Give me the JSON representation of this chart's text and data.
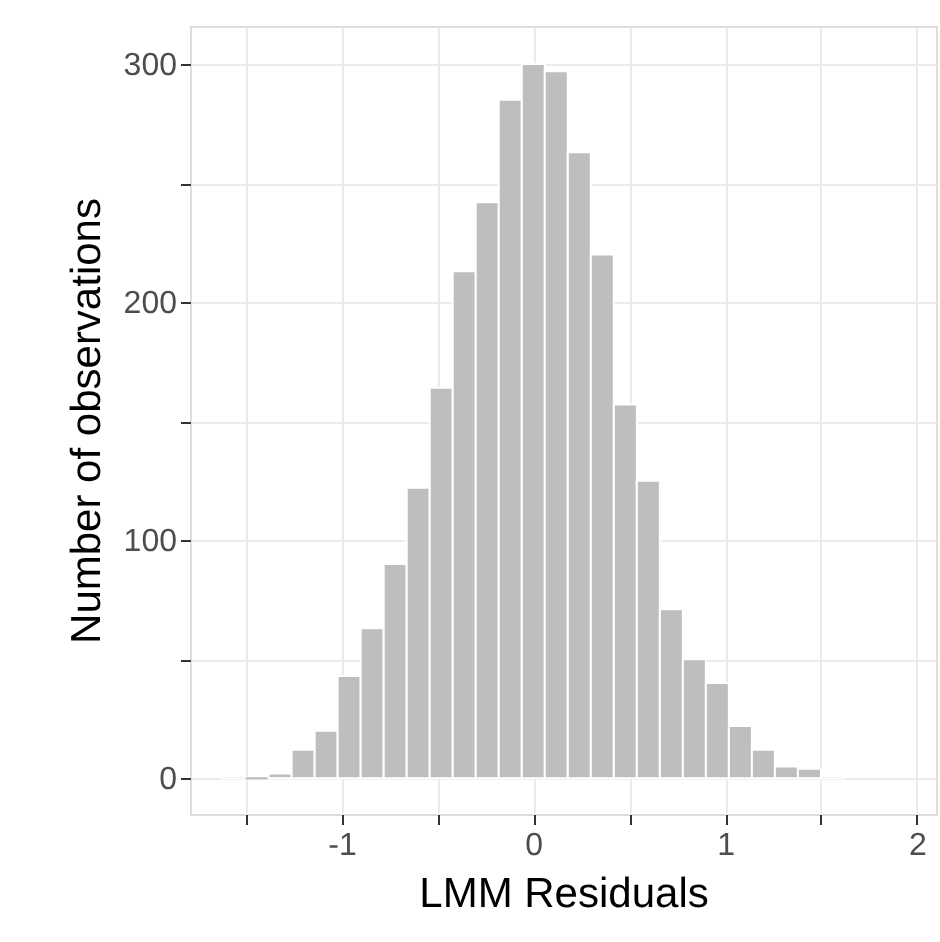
{
  "chart_data": {
    "type": "histogram",
    "xlabel": "LMM Residuals",
    "ylabel": "Number of observations",
    "bins": [
      -1.62,
      -1.5,
      -1.38,
      -1.26,
      -1.14,
      -1.02,
      -0.9,
      -0.78,
      -0.66,
      -0.54,
      -0.42,
      -0.3,
      -0.18,
      -0.06,
      0.06,
      0.18,
      0.3,
      0.42,
      0.54,
      0.66,
      0.78,
      0.9,
      1.02,
      1.14,
      1.26,
      1.38,
      1.5,
      1.62
    ],
    "values": [
      1,
      0,
      2,
      12,
      20,
      43,
      63,
      90,
      122,
      164,
      213,
      242,
      285,
      300,
      297,
      263,
      220,
      157,
      125,
      71,
      50,
      40,
      22,
      12,
      5,
      4,
      1
    ],
    "color": "#bebebe",
    "xlim": [
      -1.79,
      2.1
    ],
    "ylim": [
      -15,
      316
    ],
    "xticks": [
      {
        "value": -1.5,
        "label": null
      },
      -1,
      {
        "value": -0.5,
        "label": null
      },
      0,
      {
        "value": 0.5,
        "label": null
      },
      1,
      {
        "value": 1.5,
        "label": null
      },
      2
    ],
    "yticks": [
      0,
      {
        "value": 50,
        "label": null
      },
      100,
      {
        "value": 150,
        "label": null
      },
      200,
      {
        "value": 250,
        "label": null
      },
      300
    ],
    "grid": true
  }
}
